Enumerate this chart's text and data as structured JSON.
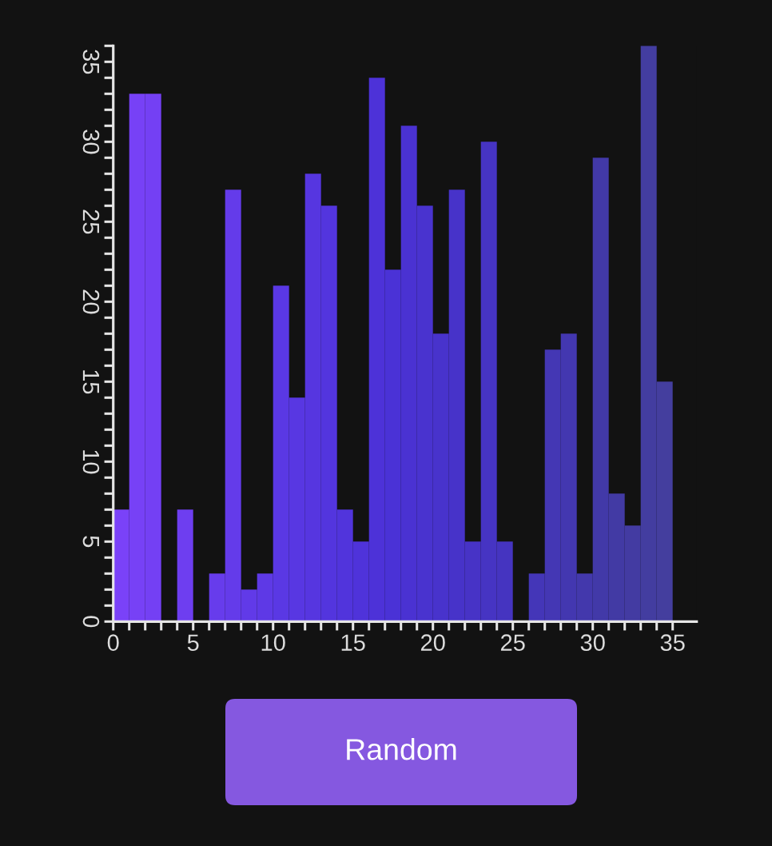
{
  "chart_data": {
    "type": "histogram",
    "bins": [
      0,
      1,
      2,
      3,
      4,
      5,
      6,
      7,
      8,
      9,
      10,
      11,
      12,
      13,
      14,
      15,
      16,
      17,
      18,
      19,
      20,
      21,
      22,
      23,
      24,
      25,
      26,
      27,
      28,
      29,
      30,
      31,
      32,
      33,
      34,
      35
    ],
    "values": [
      7,
      33,
      33,
      0,
      7,
      0,
      3,
      27,
      2,
      3,
      21,
      14,
      28,
      26,
      7,
      5,
      34,
      22,
      31,
      26,
      18,
      27,
      5,
      30,
      5,
      0,
      3,
      17,
      18,
      3,
      29,
      8,
      6,
      36,
      15
    ],
    "colors": [
      "#7a42f8",
      "#7741f6",
      "#7440f4",
      "#713ff2",
      "#6e3ef0",
      "#6a3dee",
      "#673cec",
      "#643bea",
      "#613ae8",
      "#5e39e6",
      "#5a38e4",
      "#5837e2",
      "#5636e0",
      "#5335de",
      "#5134dc",
      "#4f33da",
      "#4d32d8",
      "#4a32d6",
      "#4a32d2",
      "#4933cf",
      "#4833cc",
      "#4733c9",
      "#4733c6",
      "#4634c3",
      "#4534c0",
      "#4535bc",
      "#4436b8",
      "#4437b4",
      "#4337b0",
      "#4338ac",
      "#4239a8",
      "#423aa4",
      "#433ba2",
      "#433da0",
      "#443e9e"
    ],
    "xlim": [
      0,
      36.5
    ],
    "xticks": [
      0,
      {
        "value": 1,
        "label": null
      },
      {
        "value": 2,
        "label": null
      },
      {
        "value": 3,
        "label": null
      },
      {
        "value": 4,
        "label": null
      },
      5,
      {
        "value": 6,
        "label": null
      },
      {
        "value": 7,
        "label": null
      },
      {
        "value": 8,
        "label": null
      },
      {
        "value": 9,
        "label": null
      },
      10,
      {
        "value": 11,
        "label": null
      },
      {
        "value": 12,
        "label": null
      },
      {
        "value": 13,
        "label": null
      },
      {
        "value": 14,
        "label": null
      },
      15,
      {
        "value": 16,
        "label": null
      },
      {
        "value": 17,
        "label": null
      },
      {
        "value": 18,
        "label": null
      },
      {
        "value": 19,
        "label": null
      },
      20,
      {
        "value": 21,
        "label": null
      },
      {
        "value": 22,
        "label": null
      },
      {
        "value": 23,
        "label": null
      },
      {
        "value": 24,
        "label": null
      },
      25,
      {
        "value": 26,
        "label": null
      },
      {
        "value": 27,
        "label": null
      },
      {
        "value": 28,
        "label": null
      },
      {
        "value": 29,
        "label": null
      },
      30,
      {
        "value": 31,
        "label": null
      },
      {
        "value": 32,
        "label": null
      },
      {
        "value": 33,
        "label": null
      },
      {
        "value": 34,
        "label": null
      },
      35
    ],
    "ylim": [
      0,
      36
    ],
    "yticks": [
      0,
      {
        "value": 1,
        "label": null
      },
      {
        "value": 2,
        "label": null
      },
      {
        "value": 3,
        "label": null
      },
      {
        "value": 4,
        "label": null
      },
      5,
      {
        "value": 6,
        "label": null
      },
      {
        "value": 7,
        "label": null
      },
      {
        "value": 8,
        "label": null
      },
      {
        "value": 9,
        "label": null
      },
      10,
      {
        "value": 11,
        "label": null
      },
      {
        "value": 12,
        "label": null
      },
      {
        "value": 13,
        "label": null
      },
      {
        "value": 14,
        "label": null
      },
      15,
      {
        "value": 16,
        "label": null
      },
      {
        "value": 17,
        "label": null
      },
      {
        "value": 18,
        "label": null
      },
      {
        "value": 19,
        "label": null
      },
      20,
      {
        "value": 21,
        "label": null
      },
      {
        "value": 22,
        "label": null
      },
      {
        "value": 23,
        "label": null
      },
      {
        "value": 24,
        "label": null
      },
      25,
      {
        "value": 26,
        "label": null
      },
      {
        "value": 27,
        "label": null
      },
      {
        "value": 28,
        "label": null
      },
      {
        "value": 29,
        "label": null
      },
      30,
      {
        "value": 31,
        "label": null
      },
      {
        "value": 32,
        "label": null
      },
      {
        "value": 33,
        "label": null
      },
      {
        "value": 34,
        "label": null
      },
      35,
      {
        "value": 36,
        "label": null
      }
    ],
    "annotations": [
      "Random"
    ]
  }
}
